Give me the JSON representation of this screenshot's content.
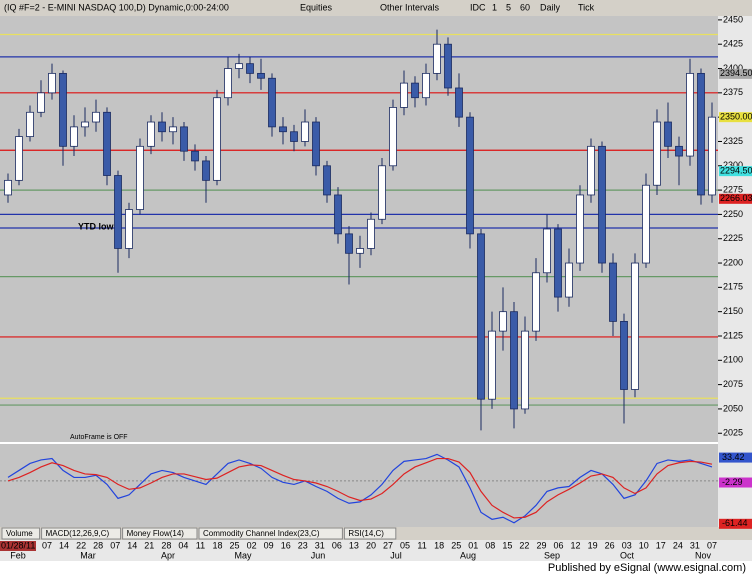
{
  "toolbar": {
    "symbol": "(IQ #F=2 - E-MINI NASDAQ 100,D) Dynamic,0:00-24:00",
    "items": [
      "Equities",
      "Other Intervals",
      "IDC",
      "1",
      "5",
      "60",
      "Daily",
      "Tick"
    ]
  },
  "chart_data": {
    "type": "candlestick",
    "open": [
      2270,
      2285,
      2330,
      2355,
      2375,
      2395,
      2320,
      2340,
      2345,
      2355,
      2290,
      2215,
      2255,
      2320,
      2345,
      2335,
      2340,
      2315,
      2305,
      2285,
      2370,
      2400,
      2405,
      2395,
      2390,
      2340,
      2335,
      2325,
      2345,
      2300,
      2270,
      2230,
      2210,
      2215,
      2245,
      2300,
      2360,
      2385,
      2370,
      2395,
      2425,
      2380,
      2350,
      2230,
      2060,
      2130,
      2150,
      2050,
      2130,
      2190,
      2235,
      2165,
      2200,
      2270,
      2320,
      2200,
      2140,
      2070,
      2200,
      2280,
      2345,
      2320,
      2310,
      2395,
      2270
    ],
    "high": [
      2292,
      2338,
      2362,
      2388,
      2405,
      2398,
      2352,
      2360,
      2368,
      2360,
      2295,
      2262,
      2328,
      2352,
      2355,
      2350,
      2345,
      2322,
      2310,
      2378,
      2412,
      2415,
      2412,
      2410,
      2395,
      2350,
      2342,
      2358,
      2350,
      2305,
      2278,
      2238,
      2228,
      2252,
      2308,
      2368,
      2398,
      2392,
      2405,
      2440,
      2432,
      2395,
      2355,
      2235,
      2150,
      2175,
      2160,
      2145,
      2205,
      2250,
      2240,
      2215,
      2280,
      2328,
      2325,
      2210,
      2148,
      2210,
      2292,
      2358,
      2365,
      2330,
      2410,
      2400,
      2365
    ],
    "low": [
      2262,
      2280,
      2325,
      2350,
      2368,
      2300,
      2310,
      2330,
      2335,
      2280,
      2190,
      2205,
      2250,
      2312,
      2325,
      2322,
      2305,
      2295,
      2262,
      2280,
      2362,
      2390,
      2385,
      2378,
      2330,
      2322,
      2315,
      2320,
      2290,
      2262,
      2220,
      2178,
      2195,
      2208,
      2240,
      2295,
      2352,
      2360,
      2362,
      2388,
      2372,
      2340,
      2215,
      2028,
      2050,
      2110,
      2030,
      2045,
      2120,
      2180,
      2150,
      2155,
      2192,
      2262,
      2190,
      2125,
      2035,
      2062,
      2195,
      2270,
      2308,
      2280,
      2300,
      2260,
      2262
    ],
    "close": [
      2285,
      2330,
      2355,
      2375,
      2395,
      2320,
      2340,
      2345,
      2355,
      2290,
      2215,
      2255,
      2320,
      2345,
      2335,
      2340,
      2315,
      2305,
      2285,
      2370,
      2400,
      2405,
      2395,
      2390,
      2340,
      2335,
      2325,
      2345,
      2300,
      2270,
      2230,
      2210,
      2215,
      2245,
      2300,
      2360,
      2385,
      2370,
      2395,
      2425,
      2380,
      2350,
      2230,
      2060,
      2130,
      2150,
      2050,
      2130,
      2190,
      2235,
      2165,
      2200,
      2270,
      2320,
      2200,
      2140,
      2070,
      2200,
      2280,
      2345,
      2320,
      2310,
      2395,
      2270,
      2350
    ],
    "up_color": "#ffffff",
    "down_color": "#3a5ba8",
    "ylim": [
      2016,
      2454
    ],
    "yticks": [
      2450,
      2425,
      2400,
      2375,
      2350,
      2325,
      2300,
      2275,
      2250,
      2225,
      2200,
      2175,
      2150,
      2125,
      2100,
      2075,
      2050,
      2025
    ],
    "levels": [
      {
        "value": 2435,
        "color": "#e8e060"
      },
      {
        "value": 2412,
        "color": "#2233aa"
      },
      {
        "value": 2375,
        "color": "#dd1111"
      },
      {
        "value": 2316,
        "color": "#dd1111"
      },
      {
        "value": 2275,
        "color": "#669966"
      },
      {
        "value": 2250,
        "color": "#2233aa"
      },
      {
        "value": 2236,
        "color": "#2233aa"
      },
      {
        "value": 2186,
        "color": "#669966"
      },
      {
        "value": 2124,
        "color": "#dd1111"
      },
      {
        "value": 2061,
        "color": "#e8e060"
      },
      {
        "value": 2054,
        "color": "#669966"
      }
    ],
    "price_tags": [
      {
        "value": 2394.5,
        "label": "2394.50",
        "color": "#a8a8a8"
      },
      {
        "value": 2350,
        "label": "2350.00",
        "color": "#e8e040"
      },
      {
        "value": 2294.5,
        "label": "2294.50",
        "color": "#40e0e0"
      },
      {
        "value": 2266.03,
        "label": "2266.03",
        "color": "#dd2222"
      }
    ],
    "annotations": [
      "YTD low",
      "AutoFrame is OFF"
    ],
    "macd": {
      "values": [
        5,
        15,
        25,
        30,
        32,
        15,
        5,
        5,
        8,
        -5,
        -25,
        -20,
        -5,
        10,
        15,
        12,
        5,
        0,
        -5,
        10,
        25,
        30,
        25,
        18,
        5,
        -2,
        -5,
        0,
        -8,
        -15,
        -25,
        -32,
        -30,
        -20,
        -5,
        15,
        28,
        30,
        32,
        38,
        30,
        20,
        -10,
        -45,
        -55,
        -52,
        -60,
        -50,
        -35,
        -15,
        -10,
        -8,
        5,
        15,
        10,
        -5,
        -25,
        -20,
        0,
        25,
        30,
        28,
        30,
        25,
        20
      ],
      "color": "#2244dd"
    },
    "signal": {
      "values": [
        0,
        5,
        12,
        20,
        26,
        22,
        15,
        10,
        9,
        5,
        -5,
        -12,
        -10,
        -3,
        5,
        10,
        10,
        6,
        2,
        4,
        12,
        20,
        23,
        22,
        15,
        8,
        2,
        0,
        -3,
        -8,
        -15,
        -23,
        -28,
        -26,
        -18,
        -5,
        10,
        20,
        26,
        32,
        32,
        27,
        12,
        -15,
        -35,
        -45,
        -53,
        -52,
        -45,
        -30,
        -20,
        -12,
        -3,
        7,
        10,
        5,
        -10,
        -18,
        -10,
        10,
        22,
        26,
        28,
        27,
        24
      ],
      "color": "#dd2222"
    },
    "macd_ylim": [
      -66,
      50
    ],
    "macd_tags": [
      {
        "value": 33.42,
        "color": "#3355cc"
      },
      {
        "value": -2.29,
        "color": "#cc33cc"
      },
      {
        "value": -61.44,
        "color": "#dd2222"
      }
    ],
    "x_tick_labels": [
      "01/28/11",
      "07",
      "14",
      "22",
      "28",
      "07",
      "14",
      "21",
      "28",
      "04",
      "11",
      "18",
      "25",
      "02",
      "09",
      "16",
      "23",
      "31",
      "06",
      "13",
      "20",
      "27",
      "05",
      "11",
      "18",
      "25",
      "01",
      "08",
      "15",
      "22",
      "29",
      "06",
      "12",
      "19",
      "26",
      "03",
      "10",
      "17",
      "24",
      "31",
      "07"
    ],
    "x_month_labels": [
      "Feb",
      "Mar",
      "Apr",
      "May",
      "Jun",
      "Jul",
      "Aug",
      "Sep",
      "Oct",
      "Nov"
    ]
  },
  "tabs": [
    "Volume",
    "MACD(12,26,9,C)",
    "Money Flow(14)",
    "Commodity Channel Index(23,C)",
    "RSI(14,C)"
  ],
  "footer": "Published by eSignal (www.esignal.com)"
}
